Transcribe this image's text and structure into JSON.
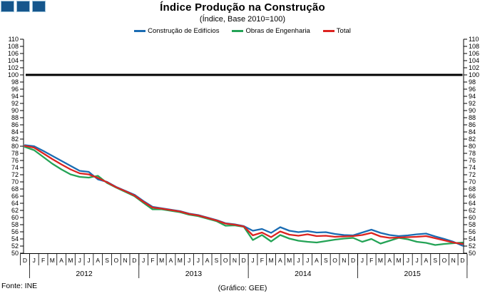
{
  "branding": {
    "square_color": "#15568c",
    "square_border": "#9cc2da",
    "square_count": 3
  },
  "footer": {
    "source": "Fonte: INE",
    "credit": "(Gráfico: GEE)"
  },
  "chart_data": {
    "type": "line",
    "title": "Índice Produção na Construção",
    "subtitle": "(Índice, Base 2010=100)",
    "ylabel": "",
    "xlabel": "",
    "ylim": [
      50,
      110
    ],
    "ytick_step": 2,
    "grid": false,
    "legend_position": "top",
    "axis_sides": "both",
    "reference_line": {
      "value": 100,
      "color": "#000000",
      "width": 3
    },
    "x_months": [
      "D",
      "J",
      "F",
      "M",
      "A",
      "M",
      "J",
      "J",
      "A",
      "S",
      "O",
      "N",
      "D",
      "J",
      "F",
      "M",
      "A",
      "M",
      "J",
      "J",
      "A",
      "S",
      "O",
      "N",
      "D",
      "J",
      "F",
      "M",
      "A",
      "M",
      "J",
      "J",
      "A",
      "S",
      "O",
      "N",
      "D",
      "J",
      "F",
      "M",
      "A",
      "M",
      "J",
      "J",
      "A",
      "S",
      "O",
      "N",
      "D"
    ],
    "x_start": "Dec 2011",
    "x_end": "Dec 2015",
    "year_groups": [
      {
        "label": "2012",
        "start": 1,
        "end": 12
      },
      {
        "label": "2013",
        "start": 13,
        "end": 24
      },
      {
        "label": "2014",
        "start": 25,
        "end": 36
      },
      {
        "label": "2015",
        "start": 37,
        "end": 48
      }
    ],
    "series": [
      {
        "name": "Construção de Edifícios",
        "color": "#1a6cb3",
        "values": [
          80.3,
          80.0,
          78.7,
          77.3,
          75.9,
          74.5,
          73.1,
          72.8,
          70.7,
          70.0,
          68.6,
          67.5,
          66.4,
          64.6,
          63.0,
          62.6,
          62.2,
          61.8,
          61.1,
          60.7,
          60.0,
          59.3,
          58.4,
          58.1,
          57.6,
          56.3,
          56.8,
          55.7,
          57.3,
          56.3,
          55.9,
          56.2,
          55.8,
          55.9,
          55.4,
          55.1,
          55.0,
          55.8,
          56.6,
          55.7,
          55.1,
          54.8,
          55.0,
          55.3,
          55.5,
          54.7,
          54.0,
          53.2,
          52.1
        ]
      },
      {
        "name": "Obras de Engenharia",
        "color": "#24a356",
        "values": [
          79.8,
          78.9,
          77.0,
          75.1,
          73.5,
          72.1,
          71.4,
          71.2,
          71.7,
          69.7,
          68.4,
          67.2,
          66.0,
          64.1,
          62.3,
          62.3,
          61.9,
          61.5,
          60.8,
          60.4,
          59.7,
          59.0,
          57.7,
          57.8,
          57.4,
          53.7,
          55.1,
          53.3,
          55.1,
          54.1,
          53.5,
          53.2,
          53.0,
          53.4,
          53.8,
          54.1,
          54.3,
          53.2,
          54.0,
          52.7,
          53.5,
          54.3,
          53.9,
          53.2,
          52.9,
          52.3,
          52.6,
          52.8,
          53.0
        ]
      },
      {
        "name": "Total",
        "color": "#dc2320",
        "values": [
          80.1,
          79.6,
          78.0,
          76.4,
          74.9,
          73.5,
          72.4,
          72.1,
          71.1,
          69.9,
          68.5,
          67.4,
          66.2,
          64.4,
          62.8,
          62.5,
          62.1,
          61.7,
          61.0,
          60.6,
          59.9,
          59.2,
          58.3,
          58.0,
          57.5,
          55.0,
          55.8,
          54.5,
          56.1,
          55.2,
          54.9,
          55.3,
          54.8,
          54.9,
          54.6,
          54.7,
          54.8,
          55.1,
          55.7,
          54.7,
          54.3,
          54.4,
          54.5,
          54.6,
          54.8,
          54.2,
          53.6,
          53.0,
          52.6
        ]
      }
    ]
  }
}
